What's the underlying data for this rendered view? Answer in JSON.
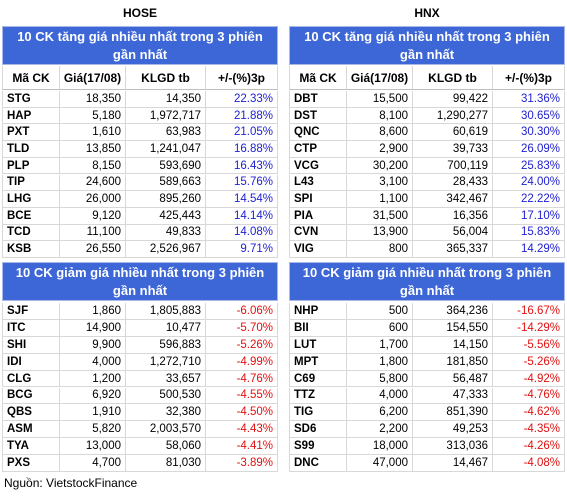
{
  "hose": {
    "title": "HOSE",
    "columns": [
      "Mã CK",
      "Giá(17/08)",
      "KLGD tb",
      "+/-(%)3p"
    ],
    "gainers": {
      "title": "10 CK tăng giá nhiều nhất trong 3 phiên gần nhất",
      "rows": [
        [
          "STG",
          "18,350",
          "14,350",
          "22.33%"
        ],
        [
          "HAP",
          "5,180",
          "1,972,717",
          "21.88%"
        ],
        [
          "PXT",
          "1,610",
          "63,983",
          "21.05%"
        ],
        [
          "TLD",
          "13,850",
          "1,241,047",
          "16.88%"
        ],
        [
          "PLP",
          "8,150",
          "593,690",
          "16.43%"
        ],
        [
          "TIP",
          "24,600",
          "589,663",
          "15.76%"
        ],
        [
          "LHG",
          "26,000",
          "895,260",
          "14.54%"
        ],
        [
          "BCE",
          "9,120",
          "425,443",
          "14.14%"
        ],
        [
          "TCD",
          "11,100",
          "49,833",
          "14.08%"
        ],
        [
          "KSB",
          "26,550",
          "2,526,967",
          "9.71%"
        ]
      ]
    },
    "losers": {
      "title": "10 CK giảm giá nhiều nhất trong 3 phiên gần nhất",
      "rows": [
        [
          "SJF",
          "1,860",
          "1,805,883",
          "-6.06%"
        ],
        [
          "ITC",
          "14,900",
          "10,477",
          "-5.70%"
        ],
        [
          "SHI",
          "9,900",
          "596,883",
          "-5.26%"
        ],
        [
          "IDI",
          "4,000",
          "1,272,710",
          "-4.99%"
        ],
        [
          "CLG",
          "1,200",
          "33,657",
          "-4.76%"
        ],
        [
          "BCG",
          "6,920",
          "500,530",
          "-4.55%"
        ],
        [
          "QBS",
          "1,910",
          "32,380",
          "-4.50%"
        ],
        [
          "ASM",
          "5,820",
          "2,003,570",
          "-4.43%"
        ],
        [
          "TYA",
          "13,000",
          "58,060",
          "-4.41%"
        ],
        [
          "PXS",
          "4,700",
          "81,030",
          "-3.89%"
        ]
      ]
    }
  },
  "hnx": {
    "title": "HNX",
    "columns": [
      "Mã CK",
      "Giá(17/08)",
      "KLGD tb",
      "+/-(%)3p"
    ],
    "gainers": {
      "title": "10 CK tăng giá nhiều nhất trong 3 phiên gần nhất",
      "rows": [
        [
          "DBT",
          "15,500",
          "99,422",
          "31.36%"
        ],
        [
          "DST",
          "8,100",
          "1,290,277",
          "30.65%"
        ],
        [
          "QNC",
          "8,600",
          "60,619",
          "30.30%"
        ],
        [
          "CTP",
          "2,900",
          "39,733",
          "26.09%"
        ],
        [
          "VCG",
          "30,200",
          "700,119",
          "25.83%"
        ],
        [
          "L43",
          "3,100",
          "28,433",
          "24.00%"
        ],
        [
          "SPI",
          "1,100",
          "342,467",
          "22.22%"
        ],
        [
          "PIA",
          "31,500",
          "16,356",
          "17.10%"
        ],
        [
          "CVN",
          "13,900",
          "56,004",
          "15.83%"
        ],
        [
          "VIG",
          "800",
          "365,337",
          "14.29%"
        ]
      ]
    },
    "losers": {
      "title": "10 CK giảm giá nhiều nhất trong 3 phiên gần nhất",
      "rows": [
        [
          "NHP",
          "500",
          "364,236",
          "-16.67%"
        ],
        [
          "BII",
          "600",
          "154,550",
          "-14.29%"
        ],
        [
          "LUT",
          "1,700",
          "14,150",
          "-5.56%"
        ],
        [
          "MPT",
          "1,800",
          "181,850",
          "-5.26%"
        ],
        [
          "C69",
          "5,800",
          "56,487",
          "-4.92%"
        ],
        [
          "TTZ",
          "4,000",
          "47,333",
          "-4.76%"
        ],
        [
          "TIG",
          "6,200",
          "851,390",
          "-4.62%"
        ],
        [
          "SD6",
          "2,200",
          "49,253",
          "-4.35%"
        ],
        [
          "S99",
          "18,000",
          "313,036",
          "-4.26%"
        ],
        [
          "DNC",
          "47,000",
          "14,467",
          "-4.08%"
        ]
      ]
    }
  },
  "source": "Nguồn: VietstockFinance"
}
